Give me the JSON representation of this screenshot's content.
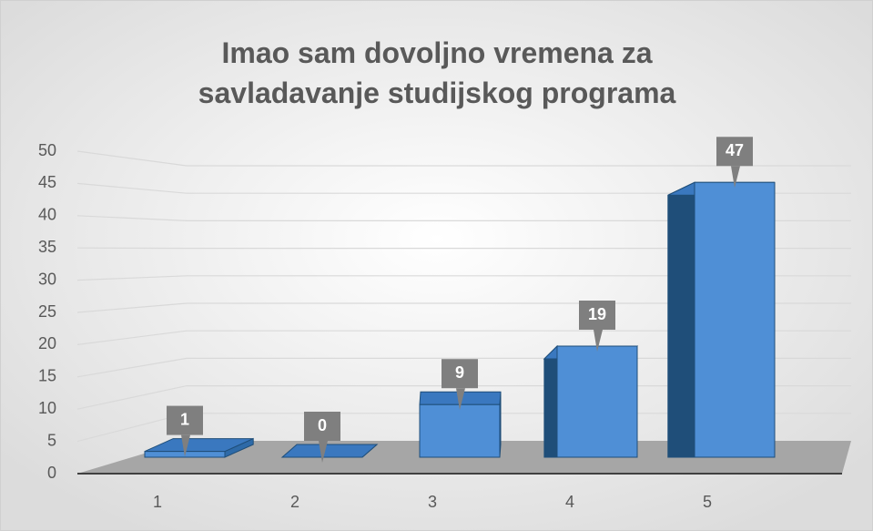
{
  "chart_data": {
    "type": "bar3d",
    "title": "Imao sam dovoljno vremena za savladavanje studijskog programa",
    "categories": [
      "1",
      "2",
      "3",
      "4",
      "5"
    ],
    "values": [
      1,
      0,
      9,
      19,
      47
    ],
    "color": "#4f8fd6",
    "ylim": [
      0,
      50
    ],
    "yticks": [
      0,
      5,
      10,
      15,
      20,
      25,
      30,
      35,
      40,
      45,
      50
    ],
    "grid": true
  }
}
